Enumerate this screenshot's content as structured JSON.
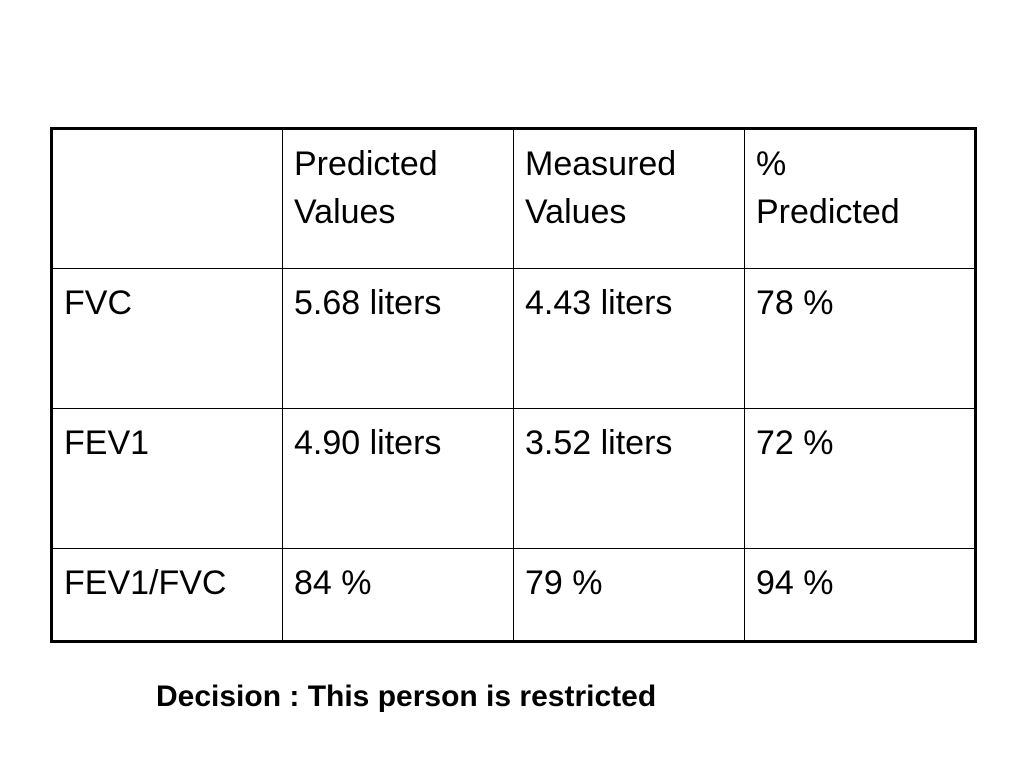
{
  "table": {
    "header": {
      "corner": "",
      "columns": [
        [
          "Predicted",
          "Values"
        ],
        [
          "Measured",
          "Values"
        ],
        [
          "%",
          "Predicted"
        ]
      ]
    },
    "rows": [
      {
        "label": "FVC",
        "predicted": "5.68 liters",
        "measured": "4.43 liters",
        "percent": "78 %"
      },
      {
        "label": "FEV1",
        "predicted": "4.90 liters",
        "measured": "3.52 liters",
        "percent": "72 %"
      },
      {
        "label": "FEV1/FVC",
        "predicted": "84 %",
        "measured": "79 %",
        "percent": "94 %"
      }
    ]
  },
  "decision": "Decision : This person is restricted"
}
